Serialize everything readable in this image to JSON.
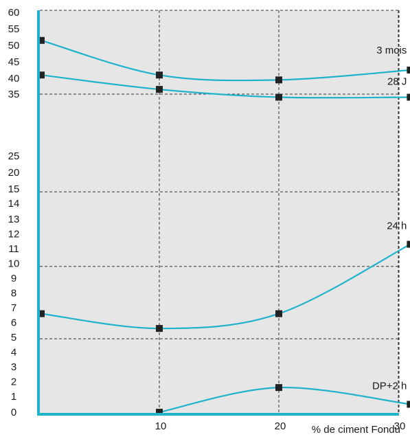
{
  "chart_data": {
    "type": "line",
    "title": "",
    "xlabel": "% de ciment Fondu",
    "ylabel": "",
    "xlim": [
      0,
      31
    ],
    "x_ticks": [
      "10",
      "20",
      "30"
    ],
    "y_ticks": [
      "0",
      "1",
      "2",
      "3",
      "4",
      "5",
      "6",
      "7",
      "8",
      "9",
      "10",
      "11",
      "12",
      "13",
      "14",
      "15",
      "20",
      "25",
      "35",
      "40",
      "45",
      "50",
      "55",
      "60"
    ],
    "y_axis_note": "Broken (non-linear) y scale: 0 to 14 in unit steps, then 15, 20, 25, 35, 40, 45, 50, 55, 60",
    "grid": true,
    "background_color": "#e6e6e6",
    "series_color": "#1fb2cc",
    "marker_color": "#222222",
    "series": [
      {
        "name": "3 mois",
        "x": [
          0,
          10,
          20,
          31
        ],
        "y": [
          51.5,
          41,
          39.5,
          42.5
        ]
      },
      {
        "name": "28 J",
        "x": [
          0,
          10,
          20,
          31
        ],
        "y": [
          41,
          36.5,
          34.5,
          34.5
        ]
      },
      {
        "name": "24 h",
        "x": [
          0,
          10,
          20,
          31
        ],
        "y": [
          6.6,
          5.6,
          6.6,
          11.3
        ]
      },
      {
        "name": "DP+2 h",
        "x": [
          10,
          20,
          31
        ],
        "y": [
          0,
          1.6,
          0.5
        ]
      }
    ]
  }
}
